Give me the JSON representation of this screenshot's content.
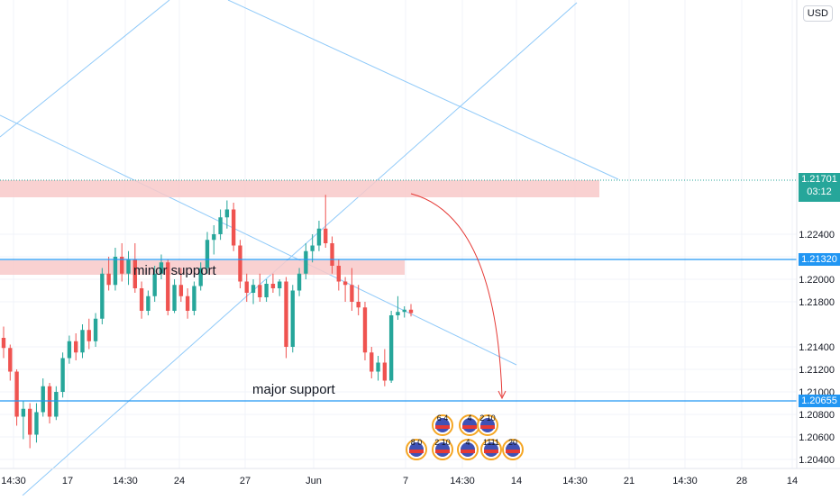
{
  "currency": "USD",
  "annotations": {
    "minor_support": "minor support",
    "major_support": "major support"
  },
  "colors": {
    "up": "#26a69a",
    "down": "#ef5350",
    "trendline": "#90caf9",
    "hline": "#2196f3",
    "zone": "#f8c9c9",
    "projection": "#e53935",
    "last_price_bg": "#26a69a",
    "hline_tag_bg": "#2196f3"
  },
  "price_axis": {
    "ticks": [
      "1.22400",
      "1.22200",
      "1.22000",
      "1.21800",
      "1.21400",
      "1.21200",
      "1.21000",
      "1.20800",
      "1.20600",
      "1.20400"
    ],
    "last_price": "1.21701",
    "countdown": "03:12",
    "minor_level_label": "1.21320",
    "major_level_label": "1.20655"
  },
  "time_axis": {
    "ticks": [
      "14:30",
      "17",
      "14:30",
      "24",
      "27",
      "Jun",
      "7",
      "14:30",
      "14",
      "14:30",
      "21",
      "14:30",
      "28",
      "14"
    ]
  },
  "events": {
    "row1": [
      "6 4",
      "4",
      "2 10"
    ],
    "row2": [
      "8 0",
      "2 10",
      "4",
      "1111",
      "20"
    ]
  },
  "chart_data": {
    "type": "candlestick",
    "symbol_currency": "USD",
    "ylim": [
      1.2032,
      1.2448
    ],
    "levels": [
      {
        "name": "minor support",
        "price": 1.2132
      },
      {
        "name": "major support",
        "price": 1.20655
      }
    ],
    "zones": [
      {
        "from": 1.2168,
        "to": 1.2174
      },
      {
        "from": 1.2128,
        "to": 1.2134
      }
    ],
    "last_price": 1.21701,
    "x_ticks": [
      "14:30",
      "17",
      "14:30",
      "24",
      "27",
      "Jun",
      "7",
      "14:30",
      "14",
      "14:30",
      "21",
      "14:30",
      "28",
      "14"
    ],
    "candles": [
      [
        1.2148,
        1.2158,
        1.213,
        1.2139
      ],
      [
        1.2139,
        1.2142,
        1.211,
        1.2118
      ],
      [
        1.2118,
        1.212,
        1.207,
        1.2078
      ],
      [
        1.2078,
        1.2092,
        1.2058,
        1.2085
      ],
      [
        1.2085,
        1.209,
        1.205,
        1.2062
      ],
      [
        1.2062,
        1.209,
        1.2055,
        1.2082
      ],
      [
        1.2082,
        1.2112,
        1.2078,
        1.2105
      ],
      [
        1.2105,
        1.2108,
        1.2072,
        1.2078
      ],
      [
        1.2078,
        1.2105,
        1.2075,
        1.21
      ],
      [
        1.21,
        1.2135,
        1.2095,
        1.213
      ],
      [
        1.213,
        1.215,
        1.2125,
        1.2145
      ],
      [
        1.2145,
        1.2152,
        1.2128,
        1.2135
      ],
      [
        1.2135,
        1.216,
        1.213,
        1.2155
      ],
      [
        1.2155,
        1.2165,
        1.2138,
        1.2145
      ],
      [
        1.2145,
        1.217,
        1.214,
        1.2165
      ],
      [
        1.2165,
        1.221,
        1.216,
        1.2205
      ],
      [
        1.2205,
        1.222,
        1.219,
        1.2195
      ],
      [
        1.2195,
        1.2228,
        1.219,
        1.222
      ],
      [
        1.222,
        1.2232,
        1.2198,
        1.2205
      ],
      [
        1.2205,
        1.2225,
        1.2195,
        1.2218
      ],
      [
        1.2218,
        1.2232,
        1.2188,
        1.2192
      ],
      [
        1.2192,
        1.2198,
        1.2165,
        1.2172
      ],
      [
        1.2172,
        1.219,
        1.2168,
        1.2185
      ],
      [
        1.2185,
        1.2212,
        1.218,
        1.2205
      ],
      [
        1.2205,
        1.2222,
        1.22,
        1.2215
      ],
      [
        1.2215,
        1.2218,
        1.2168,
        1.2172
      ],
      [
        1.2172,
        1.22,
        1.217,
        1.2195
      ],
      [
        1.2195,
        1.221,
        1.218,
        1.2185
      ],
      [
        1.2185,
        1.2192,
        1.2165,
        1.2172
      ],
      [
        1.2172,
        1.2198,
        1.2168,
        1.2194
      ],
      [
        1.2194,
        1.2215,
        1.219,
        1.221
      ],
      [
        1.221,
        1.2242,
        1.2205,
        1.2235
      ],
      [
        1.2235,
        1.2248,
        1.2222,
        1.224
      ],
      [
        1.224,
        1.2262,
        1.2235,
        1.2255
      ],
      [
        1.2255,
        1.227,
        1.2245,
        1.2262
      ],
      [
        1.2262,
        1.2268,
        1.2225,
        1.223
      ],
      [
        1.223,
        1.2235,
        1.2192,
        1.2198
      ],
      [
        1.2198,
        1.2205,
        1.218,
        1.2188
      ],
      [
        1.2188,
        1.22,
        1.2178,
        1.2195
      ],
      [
        1.2195,
        1.2205,
        1.218,
        1.2184
      ],
      [
        1.2184,
        1.22,
        1.218,
        1.2196
      ],
      [
        1.2196,
        1.2205,
        1.2188,
        1.2192
      ],
      [
        1.2192,
        1.22,
        1.2185,
        1.2198
      ],
      [
        1.2198,
        1.2202,
        1.213,
        1.214
      ],
      [
        1.214,
        1.2195,
        1.2135,
        1.219
      ],
      [
        1.219,
        1.221,
        1.2185,
        1.2205
      ],
      [
        1.2205,
        1.2232,
        1.22,
        1.2225
      ],
      [
        1.2225,
        1.224,
        1.2215,
        1.223
      ],
      [
        1.223,
        1.2252,
        1.2225,
        1.2245
      ],
      [
        1.2245,
        1.2275,
        1.2228,
        1.2232
      ],
      [
        1.2232,
        1.2238,
        1.2205,
        1.2212
      ],
      [
        1.2212,
        1.2218,
        1.219,
        1.2198
      ],
      [
        1.2198,
        1.2202,
        1.218,
        1.2195
      ],
      [
        1.2195,
        1.221,
        1.2172,
        1.218
      ],
      [
        1.218,
        1.2195,
        1.2168,
        1.2175
      ],
      [
        1.2175,
        1.218,
        1.2128,
        1.2135
      ],
      [
        1.2135,
        1.214,
        1.2112,
        1.2118
      ],
      [
        1.2118,
        1.2132,
        1.211,
        1.2126
      ],
      [
        1.2126,
        1.2138,
        1.2105,
        1.211
      ],
      [
        1.211,
        1.2172,
        1.2108,
        1.2168
      ],
      [
        1.2168,
        1.2185,
        1.2164,
        1.2171
      ],
      [
        1.2171,
        1.2176,
        1.2166,
        1.2173
      ],
      [
        1.2173,
        1.2178,
        1.2167,
        1.217
      ]
    ]
  }
}
